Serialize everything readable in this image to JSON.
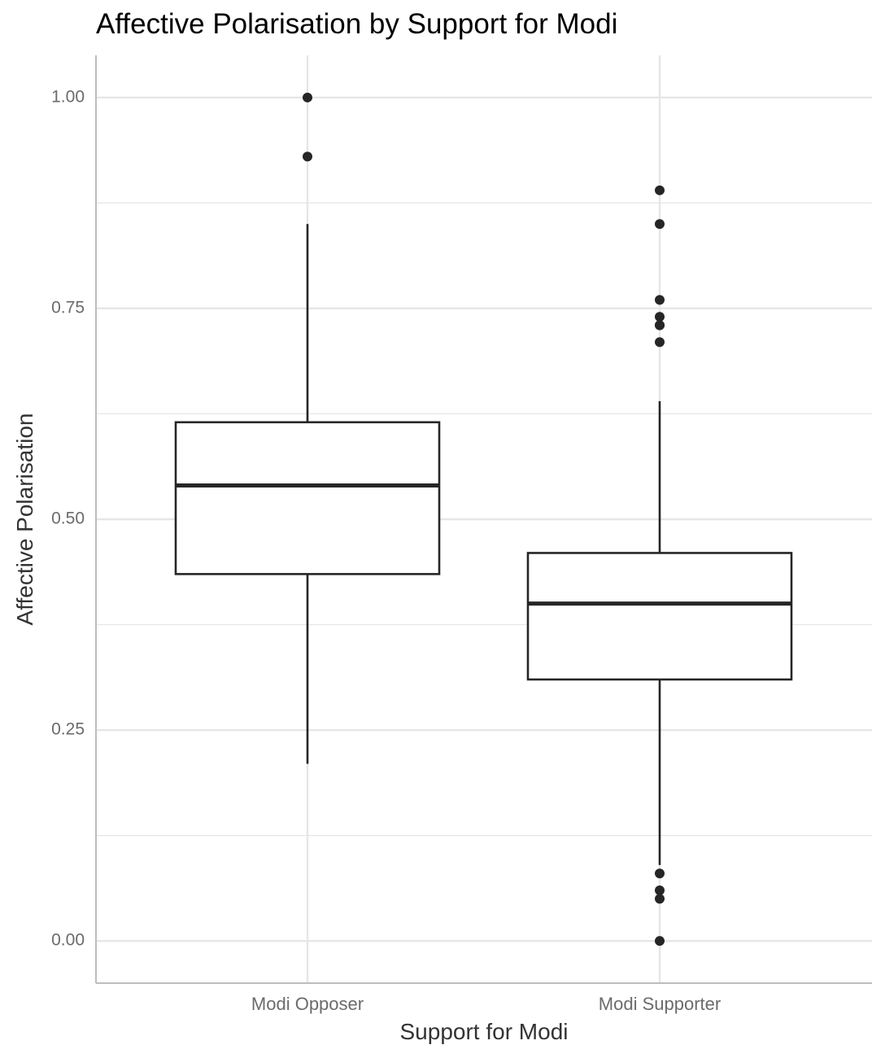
{
  "chart_data": {
    "type": "boxplot",
    "title": "Affective Polarisation by Support for Modi",
    "xlabel": "Support for Modi",
    "ylabel": "Affective Polarisation",
    "ylim": [
      -0.05,
      1.05
    ],
    "yticks": [
      0.0,
      0.25,
      0.5,
      0.75,
      1.0
    ],
    "ytick_labels": [
      "0.00",
      "0.25",
      "0.50",
      "0.75",
      "1.00"
    ],
    "grid": true,
    "categories": [
      "Modi Opposer",
      "Modi Supporter"
    ],
    "boxes": [
      {
        "name": "Modi Opposer",
        "whisker_low": 0.21,
        "q1": 0.435,
        "median": 0.54,
        "q3": 0.615,
        "whisker_high": 0.85,
        "outliers": [
          1.0,
          0.93
        ]
      },
      {
        "name": "Modi Supporter",
        "whisker_low": 0.09,
        "q1": 0.31,
        "median": 0.4,
        "q3": 0.46,
        "whisker_high": 0.64,
        "outliers": [
          0.89,
          0.85,
          0.76,
          0.74,
          0.73,
          0.73,
          0.71,
          0.08,
          0.06,
          0.05,
          0.0
        ]
      }
    ],
    "colors": {
      "grid": "#e6e6e6",
      "axis": "#bdbdbd",
      "box_line": "#262626",
      "point": "#262626"
    }
  }
}
